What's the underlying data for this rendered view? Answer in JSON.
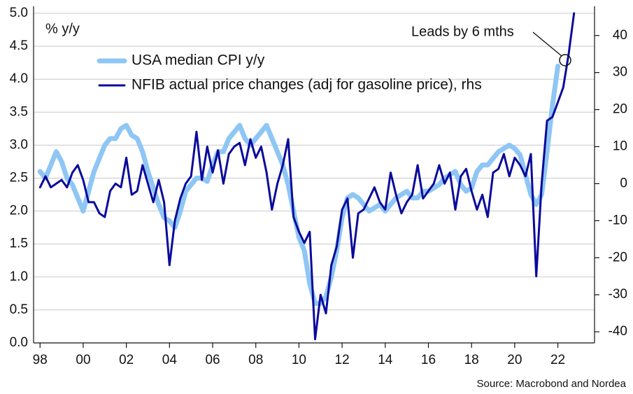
{
  "chart_data": {
    "type": "line",
    "y_label": "% y/y",
    "annotation": "Leads by 6 mths",
    "source": "Source: Macrobond and Nordea",
    "x": [
      1998,
      1998.25,
      1998.5,
      1998.75,
      1999,
      1999.25,
      1999.5,
      1999.75,
      2000,
      2000.25,
      2000.5,
      2000.75,
      2001,
      2001.25,
      2001.5,
      2001.75,
      2002,
      2002.25,
      2002.5,
      2002.75,
      2003,
      2003.25,
      2003.5,
      2003.75,
      2004,
      2004.25,
      2004.5,
      2004.75,
      2005,
      2005.25,
      2005.5,
      2005.75,
      2006,
      2006.25,
      2006.5,
      2006.75,
      2007,
      2007.25,
      2007.5,
      2007.75,
      2008,
      2008.25,
      2008.5,
      2008.75,
      2009,
      2009.25,
      2009.5,
      2009.75,
      2010,
      2010.25,
      2010.5,
      2010.75,
      2011,
      2011.25,
      2011.5,
      2011.75,
      2012,
      2012.25,
      2012.5,
      2012.75,
      2013,
      2013.25,
      2013.5,
      2013.75,
      2014,
      2014.25,
      2014.5,
      2014.75,
      2015,
      2015.25,
      2015.5,
      2015.75,
      2016,
      2016.25,
      2016.5,
      2016.75,
      2017,
      2017.25,
      2017.5,
      2017.75,
      2018,
      2018.25,
      2018.5,
      2018.75,
      2019,
      2019.25,
      2019.5,
      2019.75,
      2020,
      2020.25,
      2020.5,
      2020.75,
      2021,
      2021.25,
      2021.5,
      2021.75,
      2022,
      2022.25,
      2022.5,
      2022.75
    ],
    "xlim": [
      1997.7,
      2023.7
    ],
    "xticks": [
      {
        "value": 1998,
        "label": "98"
      },
      {
        "value": 2000,
        "label": "00"
      },
      {
        "value": 2002,
        "label": "02"
      },
      {
        "value": 2004,
        "label": "04"
      },
      {
        "value": 2006,
        "label": "06"
      },
      {
        "value": 2008,
        "label": "08"
      },
      {
        "value": 2010,
        "label": "10"
      },
      {
        "value": 2012,
        "label": "12"
      },
      {
        "value": 2014,
        "label": "14"
      },
      {
        "value": 2016,
        "label": "16"
      },
      {
        "value": 2018,
        "label": "18"
      },
      {
        "value": 2020,
        "label": "20"
      },
      {
        "value": 2022,
        "label": "22"
      }
    ],
    "ylim": [
      0,
      5
    ],
    "yticks": [
      {
        "value": 0,
        "label": "0.0"
      },
      0.5,
      {
        "value": 1,
        "label": "1.0"
      },
      1.5,
      {
        "value": 2,
        "label": "2.0"
      },
      2.5,
      {
        "value": 3,
        "label": "3.0"
      },
      3.5,
      {
        "value": 4,
        "label": "4.0"
      },
      4.5,
      {
        "value": 5,
        "label": "5.0"
      }
    ],
    "y2lim": [
      -43,
      46
    ],
    "y2ticks": [
      -40,
      -30,
      -20,
      -10,
      0,
      10,
      20,
      30,
      40
    ],
    "grid": true,
    "series": [
      {
        "name": "USA median CPI y/y",
        "color": "#8ec6f4",
        "width": 7,
        "values": [
          2.6,
          2.5,
          2.7,
          2.9,
          2.75,
          2.5,
          2.4,
          2.2,
          2.0,
          2.3,
          2.6,
          2.8,
          3.0,
          3.1,
          3.1,
          3.25,
          3.3,
          3.15,
          3.1,
          2.9,
          2.6,
          2.35,
          2.1,
          1.9,
          1.85,
          1.75,
          2.0,
          2.3,
          2.4,
          2.5,
          2.5,
          2.45,
          2.7,
          2.9,
          2.9,
          3.1,
          3.2,
          3.3,
          3.1,
          3.0,
          3.1,
          3.2,
          3.3,
          3.1,
          2.9,
          2.7,
          2.4,
          2.0,
          1.6,
          1.4,
          0.9,
          0.6,
          0.6,
          0.7,
          1.0,
          1.4,
          1.9,
          2.2,
          2.25,
          2.2,
          2.1,
          2.0,
          2.05,
          2.1,
          2.0,
          2.1,
          2.2,
          2.25,
          2.3,
          2.2,
          2.2,
          2.3,
          2.3,
          2.35,
          2.4,
          2.5,
          2.55,
          2.6,
          2.4,
          2.3,
          2.35,
          2.6,
          2.7,
          2.7,
          2.8,
          2.9,
          2.95,
          3.0,
          2.95,
          2.85,
          2.55,
          2.25,
          2.1,
          2.25,
          2.9,
          3.6,
          4.2,
          null,
          null,
          null
        ]
      },
      {
        "name": "NFIB actual price changes (adj for gasoline price), rhs",
        "color": "#0a0a9c",
        "width": 3,
        "axis": "y2",
        "values": [
          -1,
          2,
          -1,
          0,
          1,
          -1,
          3,
          5,
          1,
          -5,
          -5,
          -8,
          -9,
          -2,
          0,
          -1,
          7,
          -3,
          -2,
          5,
          0,
          -5,
          1,
          -5,
          -22,
          -10,
          -4,
          0,
          2,
          14,
          1,
          10,
          3,
          9,
          0,
          8,
          10,
          11,
          5,
          12,
          7,
          10,
          3,
          -7,
          0,
          5,
          12,
          -9,
          -13,
          -16,
          -13,
          -42,
          -30,
          -35,
          -22,
          -17,
          -7,
          -4,
          -20,
          -8,
          -7,
          -4,
          -1,
          -5,
          -7,
          3,
          -3,
          -8,
          -5,
          -3,
          5,
          -4,
          -2,
          0,
          5,
          0,
          3,
          -7,
          2,
          4,
          -2,
          -7,
          -3,
          -9,
          3,
          4,
          8,
          2,
          7,
          5,
          2,
          8,
          -25,
          0,
          17,
          18,
          22,
          26,
          35,
          46
        ]
      }
    ]
  }
}
